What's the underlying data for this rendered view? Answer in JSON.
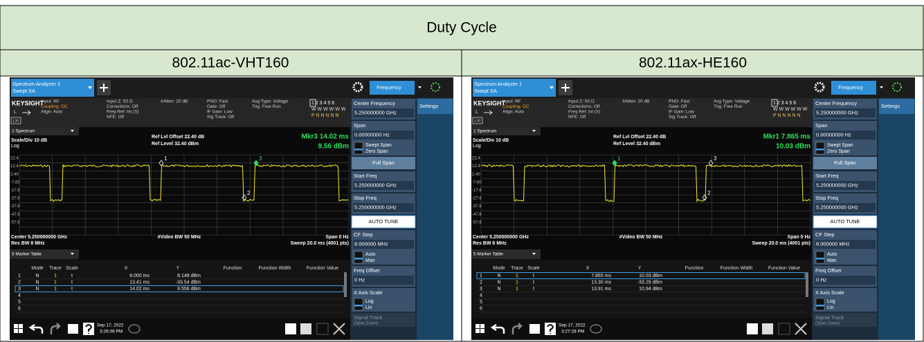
{
  "table": {
    "title": "Duty Cycle",
    "columns": [
      "802.11ac-VHT160",
      "802.11ax-HE160"
    ]
  },
  "screens": [
    {
      "app": "Spectrum Analyzer 1",
      "mode": "Swept SA",
      "menu": "Frequency",
      "brand": "KEYSIGHT",
      "channel": "L",
      "lxi": "LXI",
      "info": [
        [
          "Input: RF",
          "Coupling: DC",
          "Align: Auto"
        ],
        [
          "Input Z: 50 Ω",
          "Corrections: Off",
          "Freq Ref: Int (S)",
          "NFE: Off"
        ],
        [
          "#Atten: 20 dB"
        ],
        [
          "PNO: Fast",
          "Gate: Off",
          "IF Gain: Low",
          "Sig Track: Off"
        ],
        [
          "Avg Type: Voltage",
          "Trig: Free Run"
        ]
      ],
      "trace_flags": [
        "1 2 3 4 5 6",
        "W W W W W W",
        "P N N N N N"
      ],
      "window": "1 Spectrum",
      "ref_offset": "Ref Lvl Offset 22.40 dB",
      "ref_level": "Ref Level 32.40 dBm",
      "scale": "Scale/Div 10 dB",
      "log": "Log",
      "marker": "Mkr3  14.02 ms",
      "marker_value": "9.56 dBm",
      "y_labels": [
        "22.4",
        "12.4",
        "2.40",
        "-7.60",
        "-17.6",
        "-27.6",
        "-37.6",
        "-47.6",
        "-57.6"
      ],
      "center": "Center 5.250000000 GHz",
      "res_bw": "Res BW 8 MHz",
      "video_bw": "#Video BW 50 MHz",
      "span": "Span 0 Hz",
      "sweep": "Sweep 20.0 ms (4001 pts)",
      "marker_labels": [
        "1",
        "2",
        "3"
      ],
      "table_title": "5 Marker Table",
      "table_header": [
        "Mode",
        "Trace",
        "Scale",
        "X",
        "Y",
        "Function",
        "Function Width",
        "Function Value"
      ],
      "rows": [
        [
          "1",
          "N",
          "1",
          "t",
          "8.000 ms",
          "8.148 dBm"
        ],
        [
          "2",
          "N",
          "1",
          "t",
          "13.41 ms",
          "-33.54 dBm"
        ],
        [
          "3",
          "N",
          "1",
          "t",
          "14.02 ms",
          "9.556 dBm"
        ],
        [
          "4"
        ],
        [
          "5"
        ],
        [
          "6"
        ]
      ],
      "date": "Sep 17, 2022",
      "time": "3:26:06 PM",
      "settings": "Settings",
      "panel": [
        {
          "label": "Center Frequency",
          "value": "5.250000000 GHz"
        },
        {
          "label": "Span",
          "value": "0.00000000 Hz",
          "options": [
            "Swept Span",
            "Zero Span"
          ]
        },
        {
          "button": "Full Span"
        },
        {
          "label": "Start Freq",
          "value": "5.250000000 GHz"
        },
        {
          "label": "Stop Freq",
          "value": "5.250000000 GHz"
        },
        {
          "button": "AUTO TUNE"
        },
        {
          "label": "CF Step",
          "value": "8.000000 MHz",
          "options": [
            "Auto",
            "Man"
          ]
        },
        {
          "label": "Freq Offset",
          "value": "0 Hz"
        },
        {
          "label": "X Axis Scale",
          "options": [
            "Log",
            "Lin"
          ]
        },
        {
          "label": "Signal Track",
          "sub": "(Span Zoom)"
        }
      ]
    },
    {
      "app": "Spectrum Analyzer 1",
      "mode": "Swept SA",
      "menu": "Frequency",
      "brand": "KEYSIGHT",
      "channel": "L",
      "lxi": "LXI",
      "info": [
        [
          "Input: RF",
          "Coupling: DC",
          "Align: Auto"
        ],
        [
          "Input Z: 50 Ω",
          "Corrections: Off",
          "Freq Ref: Int (S)",
          "NFE: Off"
        ],
        [
          "#Atten: 20 dB"
        ],
        [
          "PNO: Fast",
          "Gate: Off",
          "IF Gain: Low",
          "Sig Track: Off"
        ],
        [
          "Avg Type: Voltage",
          "Trig: Free Run"
        ]
      ],
      "trace_flags": [
        "1 2 3 4 5 6",
        "W W W W W W",
        "P N N N N N"
      ],
      "window": "1 Spectrum",
      "ref_offset": "Ref Lvl Offset 22.40 dB",
      "ref_level": "Ref Level 32.40 dBm",
      "scale": "Scale/Div 10 dB",
      "log": "Log",
      "marker": "Mkr1  7.865 ms",
      "marker_value": "10.03 dBm",
      "y_labels": [
        "22.4",
        "12.4",
        "2.40",
        "-7.60",
        "-17.6",
        "-27.6",
        "-37.6",
        "-47.6",
        "-57.6"
      ],
      "center": "Center 5.250000000 GHz",
      "res_bw": "Res BW 8 MHz",
      "video_bw": "#Video BW 50 MHz",
      "span": "Span 0 Hz",
      "sweep": "Sweep 20.0 ms (4001 pts)",
      "marker_labels": [
        "1",
        "2",
        "3"
      ],
      "table_title": "5 Marker Table",
      "table_header": [
        "Mode",
        "Trace",
        "Scale",
        "X",
        "Y",
        "Function",
        "Function Width",
        "Function Value"
      ],
      "rows": [
        [
          "1",
          "N",
          "1",
          "t",
          "7.865 ms",
          "10.03 dBm"
        ],
        [
          "2",
          "N",
          "1",
          "t",
          "13.30 ms",
          "-33.29 dBm"
        ],
        [
          "3",
          "N",
          "1",
          "t",
          "13.91 ms",
          "10.94 dBm"
        ],
        [
          "4"
        ],
        [
          "5"
        ],
        [
          "6"
        ]
      ],
      "date": "Sep 17, 2022",
      "time": "3:27:28 PM",
      "settings": "Settings",
      "panel": [
        {
          "label": "Center Frequency",
          "value": "5.250000000 GHz"
        },
        {
          "label": "Span",
          "value": "0.00000000 Hz",
          "options": [
            "Swept Span",
            "Zero Span"
          ]
        },
        {
          "button": "Full Span"
        },
        {
          "label": "Start Freq",
          "value": "5.250000000 GHz"
        },
        {
          "label": "Stop Freq",
          "value": "5.250000000 GHz"
        },
        {
          "button": "AUTO TUNE"
        },
        {
          "label": "CF Step",
          "value": "8.000000 MHz",
          "options": [
            "Auto",
            "Man"
          ]
        },
        {
          "label": "Freq Offset",
          "value": "0 Hz"
        },
        {
          "label": "X Axis Scale",
          "options": [
            "Log",
            "Lin"
          ]
        },
        {
          "label": "Signal Track",
          "sub": "(Span Zoom)"
        }
      ]
    }
  ]
}
